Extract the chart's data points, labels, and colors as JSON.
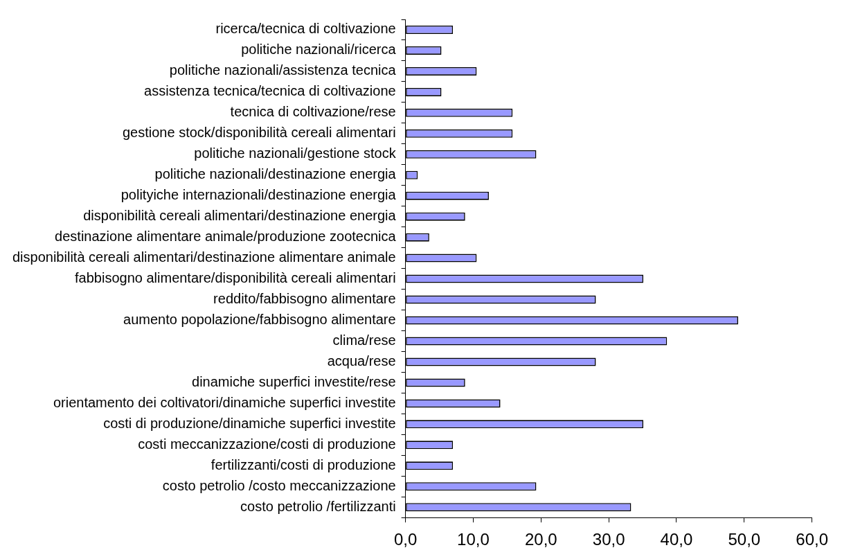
{
  "chart_data": {
    "type": "bar",
    "orientation": "horizontal",
    "categories": [
      "ricerca/tecnica di coltivazione",
      "politiche nazionali/ricerca",
      "politiche nazionali/assistenza tecnica",
      "assistenza tecnica/tecnica di coltivazione",
      "tecnica di coltivazione/rese",
      "gestione stock/disponibilità cereali alimentari",
      "politiche nazionali/gestione stock",
      "politiche nazionali/destinazione energia",
      "polityiche internazionali/destinazione energia",
      "disponibilità cereali alimentari/destinazione energia",
      "destinazione alimentare animale/produzione zootecnica",
      "disponibilità cereali alimentari/destinazione alimentare animale",
      "fabbisogno alimentare/disponibilità cereali alimentari",
      "reddito/fabbisogno alimentare",
      "aumento popolazione/fabbisogno alimentare",
      "clima/rese",
      "acqua/rese",
      "dinamiche superfici investite/rese",
      "orientamento dei coltivatori/dinamiche superfici investite",
      "costi di produzione/dinamiche superfici investite",
      "costi meccanizzazione/costi di produzione",
      "fertilizzanti/costi di produzione",
      "costo petrolio /costo meccanizzazione",
      "costo petrolio /fertilizzanti"
    ],
    "values": [
      7.0,
      5.3,
      10.5,
      5.3,
      15.8,
      15.8,
      19.3,
      1.8,
      12.3,
      8.8,
      3.5,
      10.5,
      35.1,
      28.1,
      49.1,
      38.6,
      28.1,
      8.8,
      14.0,
      35.1,
      7.0,
      7.0,
      19.3,
      33.3
    ],
    "color": "#9999ff",
    "xlim": [
      0,
      60
    ],
    "xticks": [
      {
        "value": 0,
        "label": "0,0"
      },
      {
        "value": 10,
        "label": "10,0"
      },
      {
        "value": 20,
        "label": "20,0"
      },
      {
        "value": 30,
        "label": "30,0"
      },
      {
        "value": 40,
        "label": "40,0"
      },
      {
        "value": 50,
        "label": "50,0"
      },
      {
        "value": 60,
        "label": "60,0"
      }
    ]
  }
}
